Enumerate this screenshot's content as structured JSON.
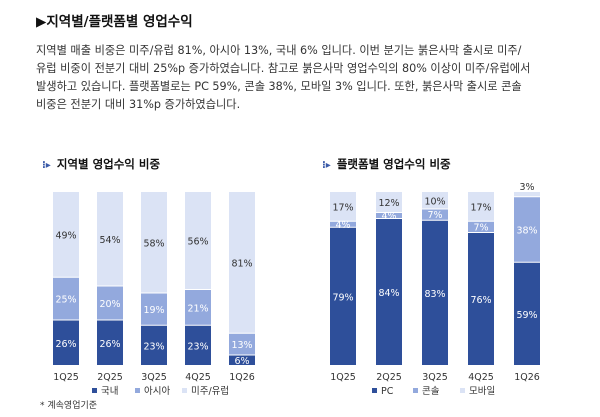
{
  "heading": "▶지역별/플랫폼별 영업수익",
  "body_lines": [
    "지역별 매출 비중은 미주/유럽 81%, 아시아 13%, 국내 6% 입니다. 이번 분기는 붉은사막 출시로 미주/",
    "유럽 비중이 전분기 대비 25%p 증가하였습니다. 참고로 붉은사막 영업수익의 80% 이상이 미주/유럽에서",
    "발생하고 있습니다. 플랫폼별로는 PC 59%, 콘솔 38%, 모바일 3% 입니다. 또한, 붉은사막 출시로 콘솔",
    "비중은 전분기 대비 31%p 증가하였습니다."
  ],
  "colors": {
    "dark": "#2e4f9a",
    "mid": "#93a9dd",
    "light": "#dbe3f5",
    "bullet": "#3a5aa8"
  },
  "chart_data": [
    {
      "type": "bar",
      "stacked": true,
      "title": "지역별 영업수익 비중",
      "categories": [
        "1Q25",
        "2Q25",
        "3Q25",
        "4Q25",
        "1Q26"
      ],
      "series": [
        {
          "name": "국내",
          "values": [
            26,
            26,
            23,
            23,
            6
          ]
        },
        {
          "name": "아시아",
          "values": [
            25,
            20,
            19,
            21,
            13
          ]
        },
        {
          "name": "미주/유럽",
          "values": [
            49,
            54,
            58,
            56,
            81
          ]
        }
      ],
      "ylim": [
        0,
        100
      ],
      "legend": "bottom",
      "note": "* 계속영업기준"
    },
    {
      "type": "bar",
      "stacked": true,
      "title": "플랫폼별 영업수익 비중",
      "categories": [
        "1Q25",
        "2Q25",
        "3Q25",
        "4Q25",
        "1Q26"
      ],
      "series": [
        {
          "name": "PC",
          "values": [
            79,
            84,
            83,
            76,
            59
          ]
        },
        {
          "name": "콘솔",
          "values": [
            4,
            4,
            7,
            7,
            38
          ]
        },
        {
          "name": "모바일",
          "values": [
            17,
            12,
            10,
            17,
            3
          ]
        }
      ],
      "ylim": [
        0,
        100
      ],
      "legend": "bottom"
    }
  ]
}
